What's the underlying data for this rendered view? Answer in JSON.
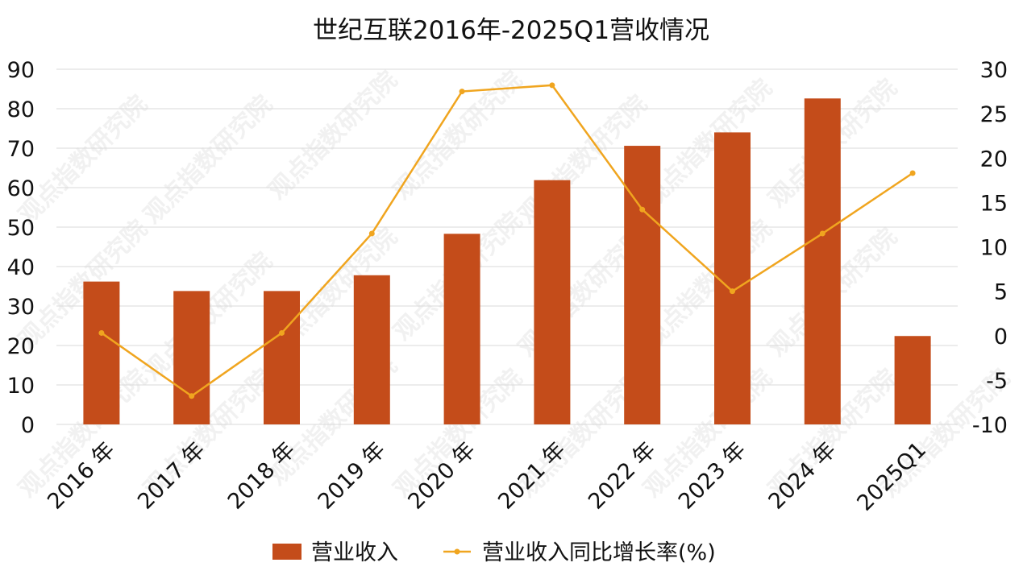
{
  "chart_data": {
    "type": "bar",
    "title": "世纪互联2016年-2025Q1营收情况",
    "categories": [
      "2016 年",
      "2017 年",
      "2018 年",
      "2019 年",
      "2020 年",
      "2021 年",
      "2022 年",
      "2023 年",
      "2024 年",
      "2025Q1"
    ],
    "series": [
      {
        "name": "营业收入",
        "type": "bar",
        "axis": "left",
        "color": "#C44C1A",
        "values": [
          36.2,
          33.8,
          33.8,
          37.8,
          48.3,
          61.9,
          70.6,
          74.0,
          82.6,
          22.4
        ]
      },
      {
        "name": "营业收入同比增长率(%)",
        "type": "line",
        "axis": "right",
        "color": "#F0A51F",
        "values": [
          0.3,
          -6.8,
          0.3,
          11.5,
          27.5,
          28.2,
          14.2,
          5.0,
          11.5,
          18.3
        ]
      }
    ],
    "y_left": {
      "min": 0,
      "max": 90,
      "step": 10,
      "ticks": [
        "0",
        "10",
        "20",
        "30",
        "40",
        "50",
        "60",
        "70",
        "80",
        "90"
      ]
    },
    "y_right": {
      "min": -10,
      "max": 30,
      "step": 5,
      "ticks": [
        "-10",
        "-5",
        "0",
        "5",
        "10",
        "15",
        "20",
        "25",
        "30"
      ]
    },
    "grid": true,
    "legend_position": "bottom",
    "watermark_text": "观点指数研究院"
  }
}
